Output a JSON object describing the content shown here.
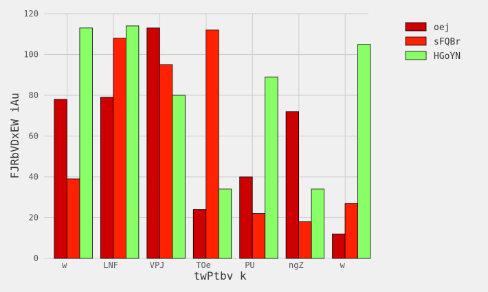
{
  "chart_data": {
    "type": "bar",
    "categories": [
      "w",
      "LNF",
      "VPJ",
      "TOe",
      "PU",
      "ngZ",
      "w"
    ],
    "series": [
      {
        "name": "oej",
        "color": "#cc0000",
        "values": [
          78,
          79,
          113,
          24,
          40,
          72,
          12
        ]
      },
      {
        "name": "sFQBr",
        "color": "#ff2200",
        "values": [
          39,
          108,
          95,
          112,
          22,
          18,
          27
        ]
      },
      {
        "name": "HGoYN",
        "color": "#88ff66",
        "values": [
          113,
          114,
          80,
          34,
          89,
          34,
          105
        ]
      }
    ],
    "xlabel": "twPtbv k",
    "ylabel": "FJRbVDxEW iAu",
    "ylim": [
      0,
      120
    ],
    "yticks": [
      0,
      20,
      40,
      60,
      80,
      100,
      120
    ],
    "grid": true,
    "legend_position": "top-right",
    "background": "#f0f0f0",
    "grid_color": "#cccccc"
  }
}
